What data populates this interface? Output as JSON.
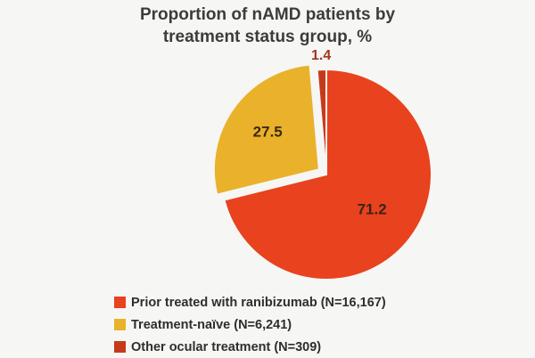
{
  "chart_data": {
    "type": "pie",
    "title_lines": [
      "Proportion of nAMD patients by",
      "treatment status group, %"
    ],
    "slices": [
      {
        "label": "Prior treated with ranibizumab (N=16,167)",
        "value": 71.2,
        "value_label": "71.2",
        "color": "#e8421e"
      },
      {
        "label": "Treatment-naïve (N=6,241)",
        "value": 27.5,
        "value_label": "27.5",
        "color": "#eab12a"
      },
      {
        "label": "Other ocular treatment (N=309)",
        "value": 1.4,
        "value_label": "1.4",
        "color": "#c63a1c"
      }
    ],
    "legend_position": "bottom"
  }
}
